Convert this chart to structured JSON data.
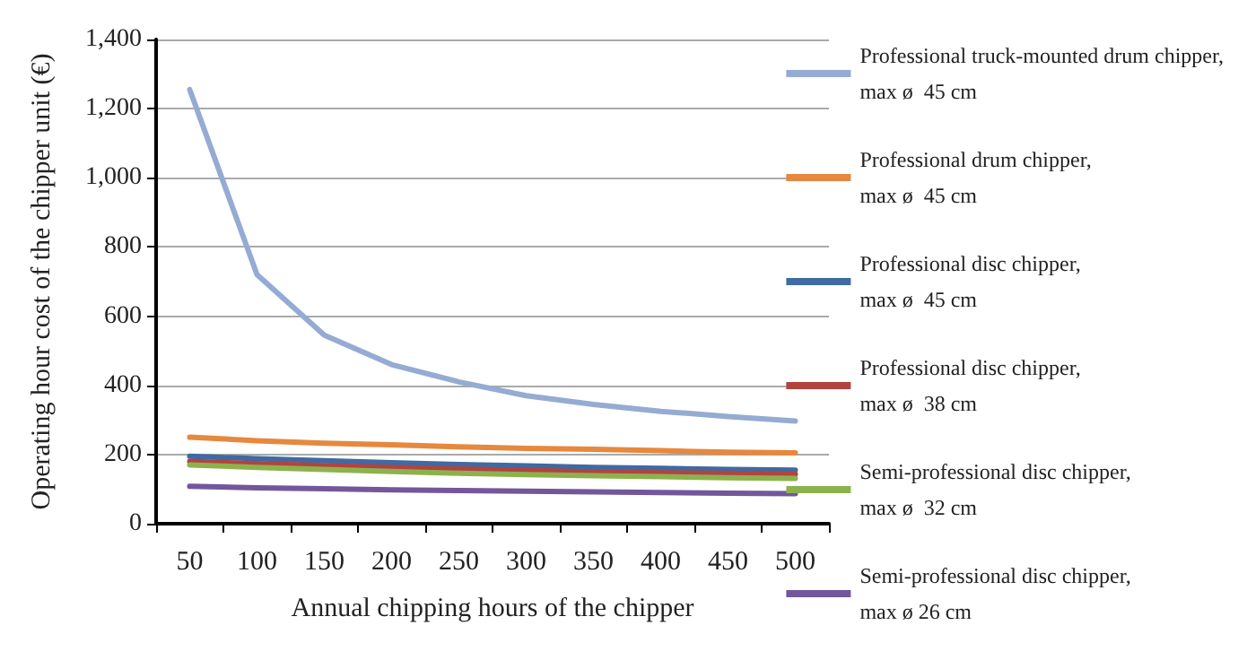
{
  "chart_data": {
    "type": "line",
    "xlabel": "Annual chipping hours of the chipper",
    "ylabel": "Operating hour cost of the chipper unit (€)",
    "categories": [
      "50",
      "100",
      "150",
      "200",
      "250",
      "300",
      "350",
      "400",
      "450",
      "500"
    ],
    "ylim": [
      0,
      1400
    ],
    "yticks": [
      0,
      {
        "value": 200,
        "label": "200"
      },
      {
        "value": 400,
        "label": "400"
      },
      {
        "value": 600,
        "label": "600"
      },
      {
        "value": 800,
        "label": "800"
      },
      {
        "value": 1000,
        "label": "1,000"
      },
      {
        "value": 1200,
        "label": "1,200"
      },
      {
        "value": 1400,
        "label": "1,400"
      }
    ],
    "grid": "y",
    "legend": "right",
    "marker": "none",
    "line_style": "solid",
    "series": [
      {
        "name": "Professional truck-mounted drum chipper,\nmax ø  45 cm",
        "color": "#95abd3",
        "values": [
          1255,
          720,
          545,
          460,
          410,
          370,
          345,
          325,
          310,
          297
        ]
      },
      {
        "name": "Professional drum chipper,\nmax ø  45 cm",
        "color": "#e6883e",
        "values": [
          250,
          240,
          233,
          228,
          222,
          218,
          215,
          211,
          207,
          205
        ]
      },
      {
        "name": "Professional disc chipper,\nmax ø  45 cm",
        "color": "#3f6aa3",
        "values": [
          195,
          188,
          182,
          176,
          171,
          167,
          163,
          160,
          157,
          155
        ]
      },
      {
        "name": "Professional disc chipper,\nmax ø  38 cm",
        "color": "#b1443f",
        "values": [
          180,
          174,
          168,
          163,
          158,
          154,
          150,
          147,
          145,
          143
        ]
      },
      {
        "name": "Semi-professional disc chipper,\nmax ø  32 cm",
        "color": "#8cb24e",
        "values": [
          170,
          163,
          157,
          151,
          146,
          142,
          139,
          136,
          133,
          131
        ]
      },
      {
        "name": "Semi-professional disc chipper,\nmax ø 26 cm",
        "color": "#73579b",
        "values": [
          108,
          104,
          101,
          98,
          96,
          94,
          92,
          90,
          88,
          87
        ]
      }
    ]
  }
}
